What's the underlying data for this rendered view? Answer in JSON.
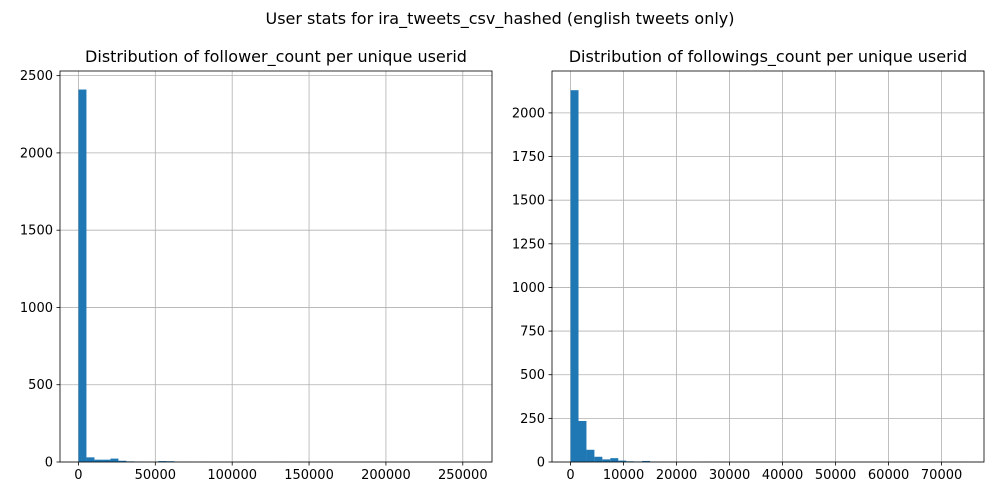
{
  "suptitle": "User stats for ira_tweets_csv_hashed (english tweets only)",
  "chart_data": [
    {
      "type": "bar",
      "title": "Distribution of follower_count per unique userid",
      "grid": true,
      "color": "#1f77b4",
      "bin_width": 5200,
      "xlim": [
        -12000,
        269000
      ],
      "ylim": [
        0,
        2530
      ],
      "xticks": [
        0,
        50000,
        100000,
        150000,
        200000,
        250000
      ],
      "xtick_labels": [
        "0",
        "50000",
        "100000",
        "150000",
        "200000",
        "250000"
      ],
      "yticks": [
        0,
        500,
        1000,
        1500,
        2000,
        2500
      ],
      "ytick_labels": [
        "0",
        "500",
        "1000",
        "1500",
        "2000",
        "2500"
      ],
      "bins": [
        {
          "x": 0,
          "value": 2410
        },
        {
          "x": 5200,
          "value": 30
        },
        {
          "x": 10400,
          "value": 15
        },
        {
          "x": 15600,
          "value": 15
        },
        {
          "x": 20800,
          "value": 22
        },
        {
          "x": 26000,
          "value": 8
        },
        {
          "x": 31200,
          "value": 4
        },
        {
          "x": 36400,
          "value": 2
        },
        {
          "x": 41600,
          "value": 1
        },
        {
          "x": 46800,
          "value": 1
        },
        {
          "x": 52000,
          "value": 6
        },
        {
          "x": 57200,
          "value": 5
        },
        {
          "x": 62400,
          "value": 1
        },
        {
          "x": 67600,
          "value": 1
        },
        {
          "x": 78000,
          "value": 1
        },
        {
          "x": 104000,
          "value": 1
        },
        {
          "x": 130000,
          "value": 1
        },
        {
          "x": 254800,
          "value": 1
        }
      ]
    },
    {
      "type": "bar",
      "title": "Distribution of followings_count per unique userid",
      "grid": true,
      "color": "#1f77b4",
      "bin_width": 1500,
      "xlim": [
        -3500,
        78000
      ],
      "ylim": [
        0,
        2240
      ],
      "xticks": [
        0,
        10000,
        20000,
        30000,
        40000,
        50000,
        60000,
        70000
      ],
      "xtick_labels": [
        "0",
        "10000",
        "20000",
        "30000",
        "40000",
        "50000",
        "60000",
        "70000"
      ],
      "yticks": [
        0,
        250,
        500,
        750,
        1000,
        1250,
        1500,
        1750,
        2000
      ],
      "ytick_labels": [
        "0",
        "250",
        "500",
        "750",
        "1000",
        "1250",
        "1500",
        "1750",
        "2000"
      ],
      "bins": [
        {
          "x": 0,
          "value": 2130
        },
        {
          "x": 1500,
          "value": 235
        },
        {
          "x": 3000,
          "value": 70
        },
        {
          "x": 4500,
          "value": 30
        },
        {
          "x": 6000,
          "value": 15
        },
        {
          "x": 7500,
          "value": 22
        },
        {
          "x": 9000,
          "value": 8
        },
        {
          "x": 10500,
          "value": 4
        },
        {
          "x": 12000,
          "value": 3
        },
        {
          "x": 13500,
          "value": 6
        },
        {
          "x": 15000,
          "value": 2
        },
        {
          "x": 16500,
          "value": 1
        },
        {
          "x": 18000,
          "value": 1
        },
        {
          "x": 21000,
          "value": 1
        },
        {
          "x": 25500,
          "value": 1
        },
        {
          "x": 73500,
          "value": 1
        }
      ]
    }
  ]
}
